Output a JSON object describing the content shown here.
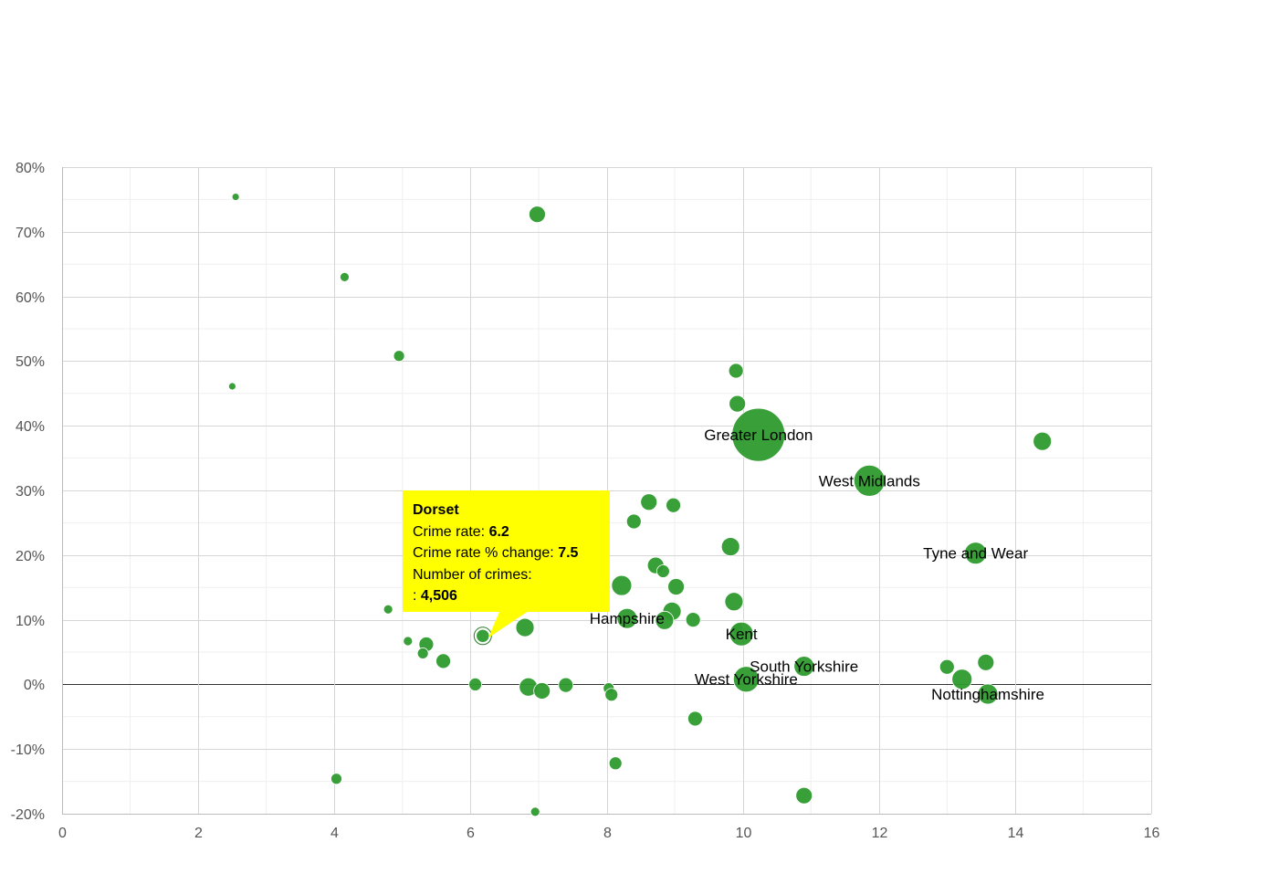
{
  "chart_data": {
    "type": "scatter",
    "variant": "bubble",
    "title": "",
    "xlabel": "",
    "ylabel": "",
    "xlim": [
      0,
      16
    ],
    "ylim": [
      -20,
      80
    ],
    "x_ticks": [
      0,
      2,
      4,
      6,
      8,
      10,
      12,
      14,
      16
    ],
    "y_ticks": [
      -20,
      -10,
      0,
      10,
      20,
      30,
      40,
      50,
      60,
      70,
      80
    ],
    "y_tick_suffix": "%",
    "grid": true,
    "bubble_color": "#2e9a2e",
    "points": [
      {
        "x": 2.55,
        "y": 75.4,
        "r": 4
      },
      {
        "x": 6.98,
        "y": 72.7,
        "r": 9
      },
      {
        "x": 4.15,
        "y": 63.0,
        "r": 5
      },
      {
        "x": 4.95,
        "y": 50.8,
        "r": 6
      },
      {
        "x": 2.5,
        "y": 46.1,
        "r": 4
      },
      {
        "x": 9.9,
        "y": 48.5,
        "r": 8
      },
      {
        "x": 9.92,
        "y": 43.4,
        "r": 9
      },
      {
        "x": 10.23,
        "y": 38.6,
        "r": 29,
        "label": "Greater London"
      },
      {
        "x": 14.4,
        "y": 37.6,
        "r": 10
      },
      {
        "x": 11.86,
        "y": 31.5,
        "r": 17,
        "label": "West Midlands"
      },
      {
        "x": 8.62,
        "y": 28.2,
        "r": 9
      },
      {
        "x": 8.98,
        "y": 27.7,
        "r": 8
      },
      {
        "x": 8.4,
        "y": 25.2,
        "r": 8
      },
      {
        "x": 9.82,
        "y": 21.3,
        "r": 10
      },
      {
        "x": 13.42,
        "y": 20.3,
        "r": 12,
        "label": "Tyne and Wear"
      },
      {
        "x": 8.72,
        "y": 18.4,
        "r": 9
      },
      {
        "x": 8.83,
        "y": 17.5,
        "r": 7
      },
      {
        "x": 8.22,
        "y": 15.3,
        "r": 11
      },
      {
        "x": 9.02,
        "y": 15.1,
        "r": 9
      },
      {
        "x": 9.87,
        "y": 12.8,
        "r": 10
      },
      {
        "x": 8.96,
        "y": 11.3,
        "r": 10
      },
      {
        "x": 8.3,
        "y": 10.2,
        "r": 11,
        "label": "Hampshire"
      },
      {
        "x": 8.85,
        "y": 9.9,
        "r": 10
      },
      {
        "x": 9.27,
        "y": 10.0,
        "r": 8
      },
      {
        "x": 4.79,
        "y": 11.6,
        "r": 5
      },
      {
        "x": 6.8,
        "y": 8.8,
        "r": 10
      },
      {
        "x": 6.18,
        "y": 7.5,
        "r": 7,
        "highlighted": true,
        "label": "Dorset"
      },
      {
        "x": 9.92,
        "y": 8.7,
        "r": 6
      },
      {
        "x": 9.98,
        "y": 7.8,
        "r": 13,
        "label": "Kent"
      },
      {
        "x": 5.08,
        "y": 6.7,
        "r": 5
      },
      {
        "x": 5.35,
        "y": 6.2,
        "r": 8
      },
      {
        "x": 5.3,
        "y": 4.8,
        "r": 6
      },
      {
        "x": 5.6,
        "y": 3.6,
        "r": 8
      },
      {
        "x": 10.9,
        "y": 2.8,
        "r": 11,
        "label": "South Yorkshire"
      },
      {
        "x": 13.0,
        "y": 2.7,
        "r": 8
      },
      {
        "x": 13.57,
        "y": 3.4,
        "r": 9
      },
      {
        "x": 13.22,
        "y": 0.8,
        "r": 11
      },
      {
        "x": 10.05,
        "y": 0.8,
        "r": 14,
        "label": "West Yorkshire"
      },
      {
        "x": 13.6,
        "y": -1.5,
        "r": 11,
        "label": "Nottinghamshire"
      },
      {
        "x": 6.07,
        "y": 0.0,
        "r": 7
      },
      {
        "x": 6.85,
        "y": -0.4,
        "r": 10
      },
      {
        "x": 7.05,
        "y": -1.0,
        "r": 9
      },
      {
        "x": 7.4,
        "y": -0.1,
        "r": 8
      },
      {
        "x": 8.03,
        "y": -0.6,
        "r": 6
      },
      {
        "x": 8.07,
        "y": -1.6,
        "r": 7
      },
      {
        "x": 9.3,
        "y": -5.3,
        "r": 8
      },
      {
        "x": 8.13,
        "y": -12.2,
        "r": 7
      },
      {
        "x": 4.03,
        "y": -14.6,
        "r": 6
      },
      {
        "x": 10.9,
        "y": -17.2,
        "r": 9
      },
      {
        "x": 6.95,
        "y": -19.7,
        "r": 5
      }
    ],
    "labels": [
      {
        "text": "Greater London",
        "x": 10.23,
        "y": 38.6
      },
      {
        "text": "West Midlands",
        "x": 11.86,
        "y": 31.5
      },
      {
        "text": "Tyne and Wear",
        "x": 13.42,
        "y": 20.3
      },
      {
        "text": "Hampshire",
        "x": 8.3,
        "y": 10.2
      },
      {
        "text": "Kent",
        "x": 9.98,
        "y": 7.8
      },
      {
        "text": "South Yorkshire",
        "x": 10.9,
        "y": 2.8
      },
      {
        "text": "West Yorkshire",
        "x": 10.05,
        "y": 0.8
      },
      {
        "text": "Nottinghamshire",
        "x": 13.6,
        "y": -1.5
      }
    ]
  },
  "tooltip": {
    "title": "Dorset",
    "crime_rate_label": "Crime rate:",
    "crime_rate_value": "6.2",
    "change_label": "Crime rate % change:",
    "change_value": "7.5",
    "crimes_label": "Number of crimes:",
    "crimes_prefix": ":",
    "crimes_value": "4,506",
    "background": "#ffff00"
  }
}
